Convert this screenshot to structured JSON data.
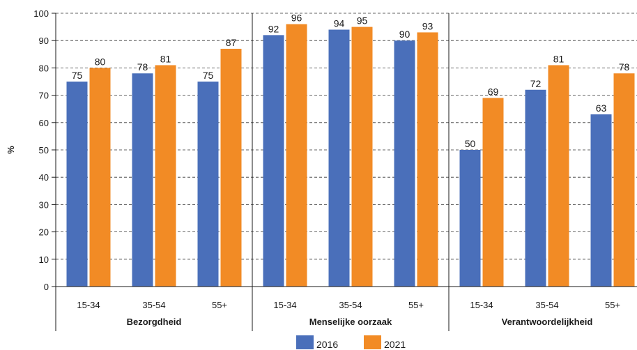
{
  "chart_data": {
    "type": "bar",
    "ylabel": "%",
    "ylim": [
      0,
      100
    ],
    "yticks": [
      0,
      10,
      20,
      30,
      40,
      50,
      60,
      70,
      80,
      90,
      100
    ],
    "grid": "dashed horizontal",
    "legend_position": "bottom-center",
    "groups": [
      {
        "name": "Bezorgdheid",
        "categories": [
          "15-34",
          "35-54",
          "55+"
        ]
      },
      {
        "name": "Menselijke oorzaak",
        "categories": [
          "15-34",
          "35-54",
          "55+"
        ]
      },
      {
        "name": "Verantwoordelijkheid",
        "categories": [
          "15-34",
          "35-54",
          "55+"
        ]
      }
    ],
    "series": [
      {
        "name": "2016",
        "color": "#4a6fba",
        "values": [
          75,
          78,
          75,
          92,
          94,
          90,
          50,
          72,
          63
        ]
      },
      {
        "name": "2021",
        "color": "#f28b25",
        "values": [
          80,
          81,
          87,
          96,
          95,
          93,
          69,
          81,
          78
        ]
      }
    ]
  }
}
